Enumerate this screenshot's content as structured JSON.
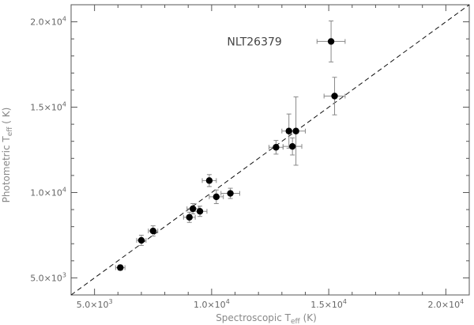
{
  "chart_data": {
    "type": "scatter",
    "title": "",
    "xlabel": "Spectroscopic T",
    "xlabel_sub": "eff",
    "xlabel_unit": " (K)",
    "ylabel": "Photometric T",
    "ylabel_sub": "eff",
    "ylabel_unit": " ( K)",
    "xlim": [
      4000,
      21000
    ],
    "ylim": [
      4000,
      21000
    ],
    "x_ticks": [
      {
        "value": 5000,
        "mantissa": "5.0×10",
        "exp": "3"
      },
      {
        "value": 10000,
        "mantissa": "1.0×10",
        "exp": "4"
      },
      {
        "value": 15000,
        "mantissa": "1.5×10",
        "exp": "4"
      },
      {
        "value": 20000,
        "mantissa": "2.0×10",
        "exp": "4"
      }
    ],
    "y_ticks": [
      {
        "value": 5000,
        "mantissa": "5.0×10",
        "exp": "3"
      },
      {
        "value": 10000,
        "mantissa": "1.0×10",
        "exp": "4"
      },
      {
        "value": 15000,
        "mantissa": "1.5×10",
        "exp": "4"
      },
      {
        "value": 20000,
        "mantissa": "2.0×10",
        "exp": "4"
      }
    ],
    "grid": false,
    "reference_line": {
      "style": "dashed",
      "slope": 1,
      "intercept": 0
    },
    "points": [
      {
        "x": 6100,
        "y": 5600,
        "xerr": 200,
        "yerr": 150
      },
      {
        "x": 7000,
        "y": 7200,
        "xerr": 200,
        "yerr": 300
      },
      {
        "x": 7500,
        "y": 7750,
        "xerr": 200,
        "yerr": 300
      },
      {
        "x": 9050,
        "y": 8550,
        "xerr": 250,
        "yerr": 300
      },
      {
        "x": 9200,
        "y": 9050,
        "xerr": 250,
        "yerr": 300
      },
      {
        "x": 9500,
        "y": 8900,
        "xerr": 300,
        "yerr": 300
      },
      {
        "x": 9900,
        "y": 10700,
        "xerr": 300,
        "yerr": 350
      },
      {
        "x": 10200,
        "y": 9750,
        "xerr": 300,
        "yerr": 400
      },
      {
        "x": 10800,
        "y": 9950,
        "xerr": 400,
        "yerr": 300
      },
      {
        "x": 12750,
        "y": 12650,
        "xerr": 300,
        "yerr": 400
      },
      {
        "x": 13300,
        "y": 13600,
        "xerr": 300,
        "yerr": 1000
      },
      {
        "x": 13450,
        "y": 12700,
        "xerr": 400,
        "yerr": 500
      },
      {
        "x": 13600,
        "y": 13600,
        "xerr": 400,
        "yerr": 2000
      },
      {
        "x": 15100,
        "y": 18850,
        "xerr": 600,
        "yerr": 1200
      },
      {
        "x": 15250,
        "y": 15650,
        "xerr": 450,
        "yerr": 1100
      }
    ],
    "annotations": [
      {
        "text": "NLT26379",
        "x": 13000,
        "y": 18850
      }
    ]
  }
}
